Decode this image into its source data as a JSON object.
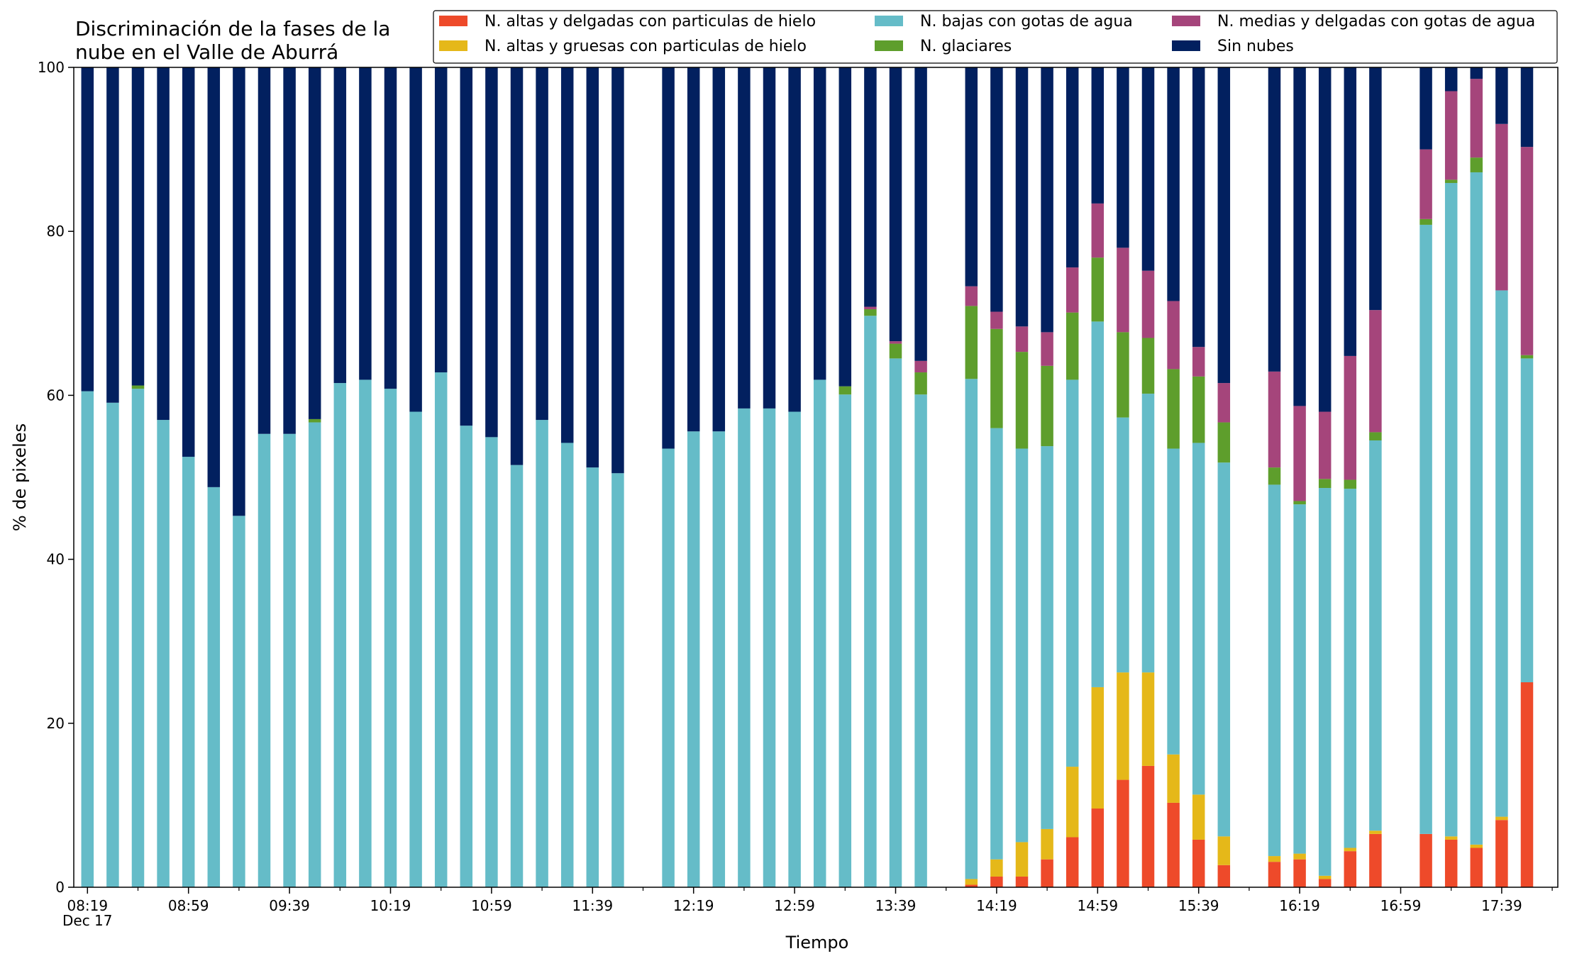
{
  "chart_data": {
    "type": "bar",
    "stacked": true,
    "title_lines": [
      "Discriminación de la fases de la",
      "nube en el Valle de Aburrá"
    ],
    "xlabel": "Tiempo",
    "ylabel": "% de pixeles",
    "ylim": [
      0,
      100
    ],
    "yticks": [
      "0",
      "20",
      "40",
      "60",
      "80",
      "100"
    ],
    "xticks": [
      "08:19",
      "08:59",
      "09:39",
      "10:19",
      "10:59",
      "11:39",
      "12:19",
      "12:59",
      "13:39",
      "14:19",
      "14:59",
      "15:39",
      "16:19",
      "16:59",
      "17:39"
    ],
    "x_date_label": "Dec 17",
    "grid": false,
    "legend_position": "top-right",
    "colors": {
      "alt_delgadas": "#ee4a2a",
      "alt_gruesas": "#e5b819",
      "bajas": "#65bcc8",
      "glaciares": "#5e9e2c",
      "medias": "#a5457b",
      "sin_nubes": "#02205f"
    },
    "series": [
      {
        "key": "alt_delgadas",
        "name": "N. altas y delgadas con particulas de hielo"
      },
      {
        "key": "alt_gruesas",
        "name": "N. altas y gruesas con particulas de hielo"
      },
      {
        "key": "bajas",
        "name": "N. bajas con gotas de agua"
      },
      {
        "key": "glaciares",
        "name": "N. glaciares"
      },
      {
        "key": "medias",
        "name": "N. medias y delgadas con gotas de agua"
      },
      {
        "key": "sin_nubes",
        "name": "Sin nubes"
      }
    ],
    "legend_order": [
      "alt_delgadas",
      "alt_gruesas",
      "bajas",
      "glaciares",
      "medias",
      "sin_nubes"
    ],
    "time_start": "08:19",
    "interval_minutes": 10,
    "stack_order": [
      "alt_delgadas",
      "alt_gruesas",
      "bajas",
      "glaciares",
      "medias",
      "sin_nubes"
    ],
    "bars": [
      {
        "time": "08:19",
        "alt_delgadas": 0,
        "alt_gruesas": 0,
        "bajas": 60.5,
        "glaciares": 0,
        "medias": 0,
        "sin_nubes": 39.5
      },
      {
        "time": "08:29",
        "alt_delgadas": 0,
        "alt_gruesas": 0,
        "bajas": 59.1,
        "glaciares": 0,
        "medias": 0,
        "sin_nubes": 40.9
      },
      {
        "time": "08:39",
        "alt_delgadas": 0,
        "alt_gruesas": 0,
        "bajas": 60.8,
        "glaciares": 0.4,
        "medias": 0,
        "sin_nubes": 38.8
      },
      {
        "time": "08:49",
        "alt_delgadas": 0,
        "alt_gruesas": 0,
        "bajas": 57.0,
        "glaciares": 0,
        "medias": 0,
        "sin_nubes": 43.0
      },
      {
        "time": "08:59",
        "alt_delgadas": 0,
        "alt_gruesas": 0,
        "bajas": 52.5,
        "glaciares": 0,
        "medias": 0,
        "sin_nubes": 47.5
      },
      {
        "time": "09:09",
        "alt_delgadas": 0,
        "alt_gruesas": 0,
        "bajas": 48.8,
        "glaciares": 0,
        "medias": 0,
        "sin_nubes": 51.2
      },
      {
        "time": "09:19",
        "alt_delgadas": 0,
        "alt_gruesas": 0,
        "bajas": 45.3,
        "glaciares": 0,
        "medias": 0,
        "sin_nubes": 54.7
      },
      {
        "time": "09:29",
        "alt_delgadas": 0,
        "alt_gruesas": 0,
        "bajas": 55.3,
        "glaciares": 0,
        "medias": 0,
        "sin_nubes": 44.7
      },
      {
        "time": "09:39",
        "alt_delgadas": 0,
        "alt_gruesas": 0,
        "bajas": 55.3,
        "glaciares": 0,
        "medias": 0,
        "sin_nubes": 44.7
      },
      {
        "time": "09:49",
        "alt_delgadas": 0,
        "alt_gruesas": 0,
        "bajas": 56.7,
        "glaciares": 0.4,
        "medias": 0,
        "sin_nubes": 42.9
      },
      {
        "time": "09:59",
        "alt_delgadas": 0,
        "alt_gruesas": 0,
        "bajas": 61.5,
        "glaciares": 0,
        "medias": 0,
        "sin_nubes": 38.5
      },
      {
        "time": "10:09",
        "alt_delgadas": 0,
        "alt_gruesas": 0,
        "bajas": 61.9,
        "glaciares": 0,
        "medias": 0,
        "sin_nubes": 38.1
      },
      {
        "time": "10:19",
        "alt_delgadas": 0,
        "alt_gruesas": 0,
        "bajas": 60.8,
        "glaciares": 0,
        "medias": 0,
        "sin_nubes": 39.2
      },
      {
        "time": "10:29",
        "alt_delgadas": 0,
        "alt_gruesas": 0,
        "bajas": 58.0,
        "glaciares": 0,
        "medias": 0,
        "sin_nubes": 42.0
      },
      {
        "time": "10:39",
        "alt_delgadas": 0,
        "alt_gruesas": 0,
        "bajas": 62.8,
        "glaciares": 0,
        "medias": 0,
        "sin_nubes": 37.2
      },
      {
        "time": "10:49",
        "alt_delgadas": 0,
        "alt_gruesas": 0,
        "bajas": 56.3,
        "glaciares": 0,
        "medias": 0,
        "sin_nubes": 43.7
      },
      {
        "time": "10:59",
        "alt_delgadas": 0,
        "alt_gruesas": 0,
        "bajas": 54.9,
        "glaciares": 0,
        "medias": 0,
        "sin_nubes": 45.1
      },
      {
        "time": "11:09",
        "alt_delgadas": 0,
        "alt_gruesas": 0,
        "bajas": 51.5,
        "glaciares": 0,
        "medias": 0,
        "sin_nubes": 48.5
      },
      {
        "time": "11:19",
        "alt_delgadas": 0,
        "alt_gruesas": 0,
        "bajas": 57.0,
        "glaciares": 0,
        "medias": 0,
        "sin_nubes": 43.0
      },
      {
        "time": "11:29",
        "alt_delgadas": 0,
        "alt_gruesas": 0,
        "bajas": 54.2,
        "glaciares": 0,
        "medias": 0,
        "sin_nubes": 45.8
      },
      {
        "time": "11:39",
        "alt_delgadas": 0,
        "alt_gruesas": 0,
        "bajas": 51.2,
        "glaciares": 0,
        "medias": 0,
        "sin_nubes": 48.8
      },
      {
        "time": "11:49",
        "alt_delgadas": 0,
        "alt_gruesas": 0,
        "bajas": 50.5,
        "glaciares": 0,
        "medias": 0,
        "sin_nubes": 49.5
      },
      {
        "time": "12:09",
        "alt_delgadas": 0,
        "alt_gruesas": 0,
        "bajas": 53.5,
        "glaciares": 0,
        "medias": 0,
        "sin_nubes": 46.5
      },
      {
        "time": "12:19",
        "alt_delgadas": 0,
        "alt_gruesas": 0,
        "bajas": 55.6,
        "glaciares": 0,
        "medias": 0,
        "sin_nubes": 44.4
      },
      {
        "time": "12:29",
        "alt_delgadas": 0,
        "alt_gruesas": 0,
        "bajas": 55.6,
        "glaciares": 0,
        "medias": 0,
        "sin_nubes": 44.4
      },
      {
        "time": "12:39",
        "alt_delgadas": 0,
        "alt_gruesas": 0,
        "bajas": 58.4,
        "glaciares": 0,
        "medias": 0,
        "sin_nubes": 41.6
      },
      {
        "time": "12:49",
        "alt_delgadas": 0,
        "alt_gruesas": 0,
        "bajas": 58.4,
        "glaciares": 0,
        "medias": 0,
        "sin_nubes": 41.6
      },
      {
        "time": "12:59",
        "alt_delgadas": 0,
        "alt_gruesas": 0,
        "bajas": 58.0,
        "glaciares": 0,
        "medias": 0,
        "sin_nubes": 42.0
      },
      {
        "time": "13:09",
        "alt_delgadas": 0,
        "alt_gruesas": 0,
        "bajas": 61.9,
        "glaciares": 0,
        "medias": 0,
        "sin_nubes": 38.1
      },
      {
        "time": "13:19",
        "alt_delgadas": 0,
        "alt_gruesas": 0,
        "bajas": 60.1,
        "glaciares": 1.0,
        "medias": 0,
        "sin_nubes": 38.9
      },
      {
        "time": "13:29",
        "alt_delgadas": 0,
        "alt_gruesas": 0,
        "bajas": 69.7,
        "glaciares": 0.8,
        "medias": 0.3,
        "sin_nubes": 29.2
      },
      {
        "time": "13:39",
        "alt_delgadas": 0,
        "alt_gruesas": 0,
        "bajas": 64.5,
        "glaciares": 1.8,
        "medias": 0.3,
        "sin_nubes": 33.4
      },
      {
        "time": "13:49",
        "alt_delgadas": 0,
        "alt_gruesas": 0,
        "bajas": 60.1,
        "glaciares": 2.7,
        "medias": 1.4,
        "sin_nubes": 35.8
      },
      {
        "time": "14:09",
        "alt_delgadas": 0.3,
        "alt_gruesas": 0.7,
        "bajas": 61.0,
        "glaciares": 8.9,
        "medias": 2.4,
        "sin_nubes": 26.7
      },
      {
        "time": "14:19",
        "alt_delgadas": 1.3,
        "alt_gruesas": 2.1,
        "bajas": 52.6,
        "glaciares": 12.1,
        "medias": 2.1,
        "sin_nubes": 29.8
      },
      {
        "time": "14:29",
        "alt_delgadas": 1.3,
        "alt_gruesas": 4.2,
        "bajas": 48.0,
        "glaciares": 11.8,
        "medias": 3.1,
        "sin_nubes": 31.6
      },
      {
        "time": "14:39",
        "alt_delgadas": 3.4,
        "alt_gruesas": 3.7,
        "bajas": 46.7,
        "glaciares": 9.8,
        "medias": 4.1,
        "sin_nubes": 32.3
      },
      {
        "time": "14:49",
        "alt_delgadas": 6.1,
        "alt_gruesas": 8.6,
        "bajas": 47.2,
        "glaciares": 8.2,
        "medias": 5.5,
        "sin_nubes": 24.4
      },
      {
        "time": "14:59",
        "alt_delgadas": 9.6,
        "alt_gruesas": 14.8,
        "bajas": 44.6,
        "glaciares": 7.8,
        "medias": 6.6,
        "sin_nubes": 16.6
      },
      {
        "time": "15:09",
        "alt_delgadas": 13.1,
        "alt_gruesas": 13.1,
        "bajas": 31.1,
        "glaciares": 10.4,
        "medias": 10.3,
        "sin_nubes": 22.0
      },
      {
        "time": "15:19",
        "alt_delgadas": 14.8,
        "alt_gruesas": 11.4,
        "bajas": 34.0,
        "glaciares": 6.8,
        "medias": 8.2,
        "sin_nubes": 24.8
      },
      {
        "time": "15:29",
        "alt_delgadas": 10.3,
        "alt_gruesas": 5.9,
        "bajas": 37.3,
        "glaciares": 9.7,
        "medias": 8.3,
        "sin_nubes": 28.5
      },
      {
        "time": "15:39",
        "alt_delgadas": 5.8,
        "alt_gruesas": 5.5,
        "bajas": 42.9,
        "glaciares": 8.1,
        "medias": 3.6,
        "sin_nubes": 34.1
      },
      {
        "time": "15:49",
        "alt_delgadas": 2.7,
        "alt_gruesas": 3.5,
        "bajas": 45.6,
        "glaciares": 4.9,
        "medias": 4.8,
        "sin_nubes": 38.5
      },
      {
        "time": "16:09",
        "alt_delgadas": 3.1,
        "alt_gruesas": 0.7,
        "bajas": 45.3,
        "glaciares": 2.1,
        "medias": 11.7,
        "sin_nubes": 37.1
      },
      {
        "time": "16:19",
        "alt_delgadas": 3.4,
        "alt_gruesas": 0.7,
        "bajas": 42.6,
        "glaciares": 0.4,
        "medias": 11.6,
        "sin_nubes": 41.3
      },
      {
        "time": "16:29",
        "alt_delgadas": 1.0,
        "alt_gruesas": 0.4,
        "bajas": 47.3,
        "glaciares": 1.1,
        "medias": 8.2,
        "sin_nubes": 42.0
      },
      {
        "time": "16:39",
        "alt_delgadas": 4.4,
        "alt_gruesas": 0.4,
        "bajas": 43.8,
        "glaciares": 1.1,
        "medias": 15.1,
        "sin_nubes": 35.2
      },
      {
        "time": "16:49",
        "alt_delgadas": 6.5,
        "alt_gruesas": 0.4,
        "bajas": 47.6,
        "glaciares": 1.0,
        "medias": 14.9,
        "sin_nubes": 29.6
      },
      {
        "time": "17:09",
        "alt_delgadas": 6.5,
        "alt_gruesas": 0,
        "bajas": 74.3,
        "glaciares": 0.7,
        "medias": 8.5,
        "sin_nubes": 10.0
      },
      {
        "time": "17:19",
        "alt_delgadas": 5.8,
        "alt_gruesas": 0.4,
        "bajas": 79.7,
        "glaciares": 0.4,
        "medias": 10.8,
        "sin_nubes": 2.9
      },
      {
        "time": "17:29",
        "alt_delgadas": 4.8,
        "alt_gruesas": 0.4,
        "bajas": 82.0,
        "glaciares": 1.8,
        "medias": 9.6,
        "sin_nubes": 1.4
      },
      {
        "time": "17:39",
        "alt_delgadas": 8.2,
        "alt_gruesas": 0.4,
        "bajas": 64.2,
        "glaciares": 0,
        "medias": 20.3,
        "sin_nubes": 6.9
      },
      {
        "time": "17:49",
        "alt_delgadas": 25.0,
        "alt_gruesas": 0,
        "bajas": 39.5,
        "glaciares": 0.4,
        "medias": 25.4,
        "sin_nubes": 9.7
      }
    ]
  }
}
